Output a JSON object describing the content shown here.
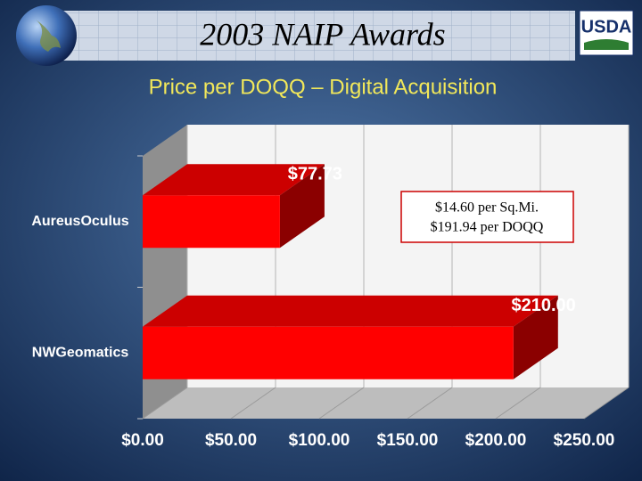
{
  "header": {
    "title": "2003 NAIP Awards",
    "logo": "USDA"
  },
  "chart_data": {
    "type": "bar",
    "title": "Price per DOQQ – Digital Acquisition",
    "categories": [
      "AureusOculus",
      "NWGeomatics"
    ],
    "values": [
      77.73,
      210.0
    ],
    "value_labels": [
      "$77.73",
      "$210.00"
    ],
    "color": "#ff0000",
    "xlim": [
      0,
      250
    ],
    "xticks": [
      {
        "value": 0,
        "label": "$0.00"
      },
      {
        "value": 50,
        "label": "$50.00"
      },
      {
        "value": 100,
        "label": "$100.00"
      },
      {
        "value": 150,
        "label": "$150.00"
      },
      {
        "value": 200,
        "label": "$200.00"
      },
      {
        "value": 250,
        "label": "$250.00"
      }
    ],
    "grid": true,
    "annotations": [
      "$14.60 per Sq.Mi.",
      "$191.94 per DOQQ"
    ]
  }
}
